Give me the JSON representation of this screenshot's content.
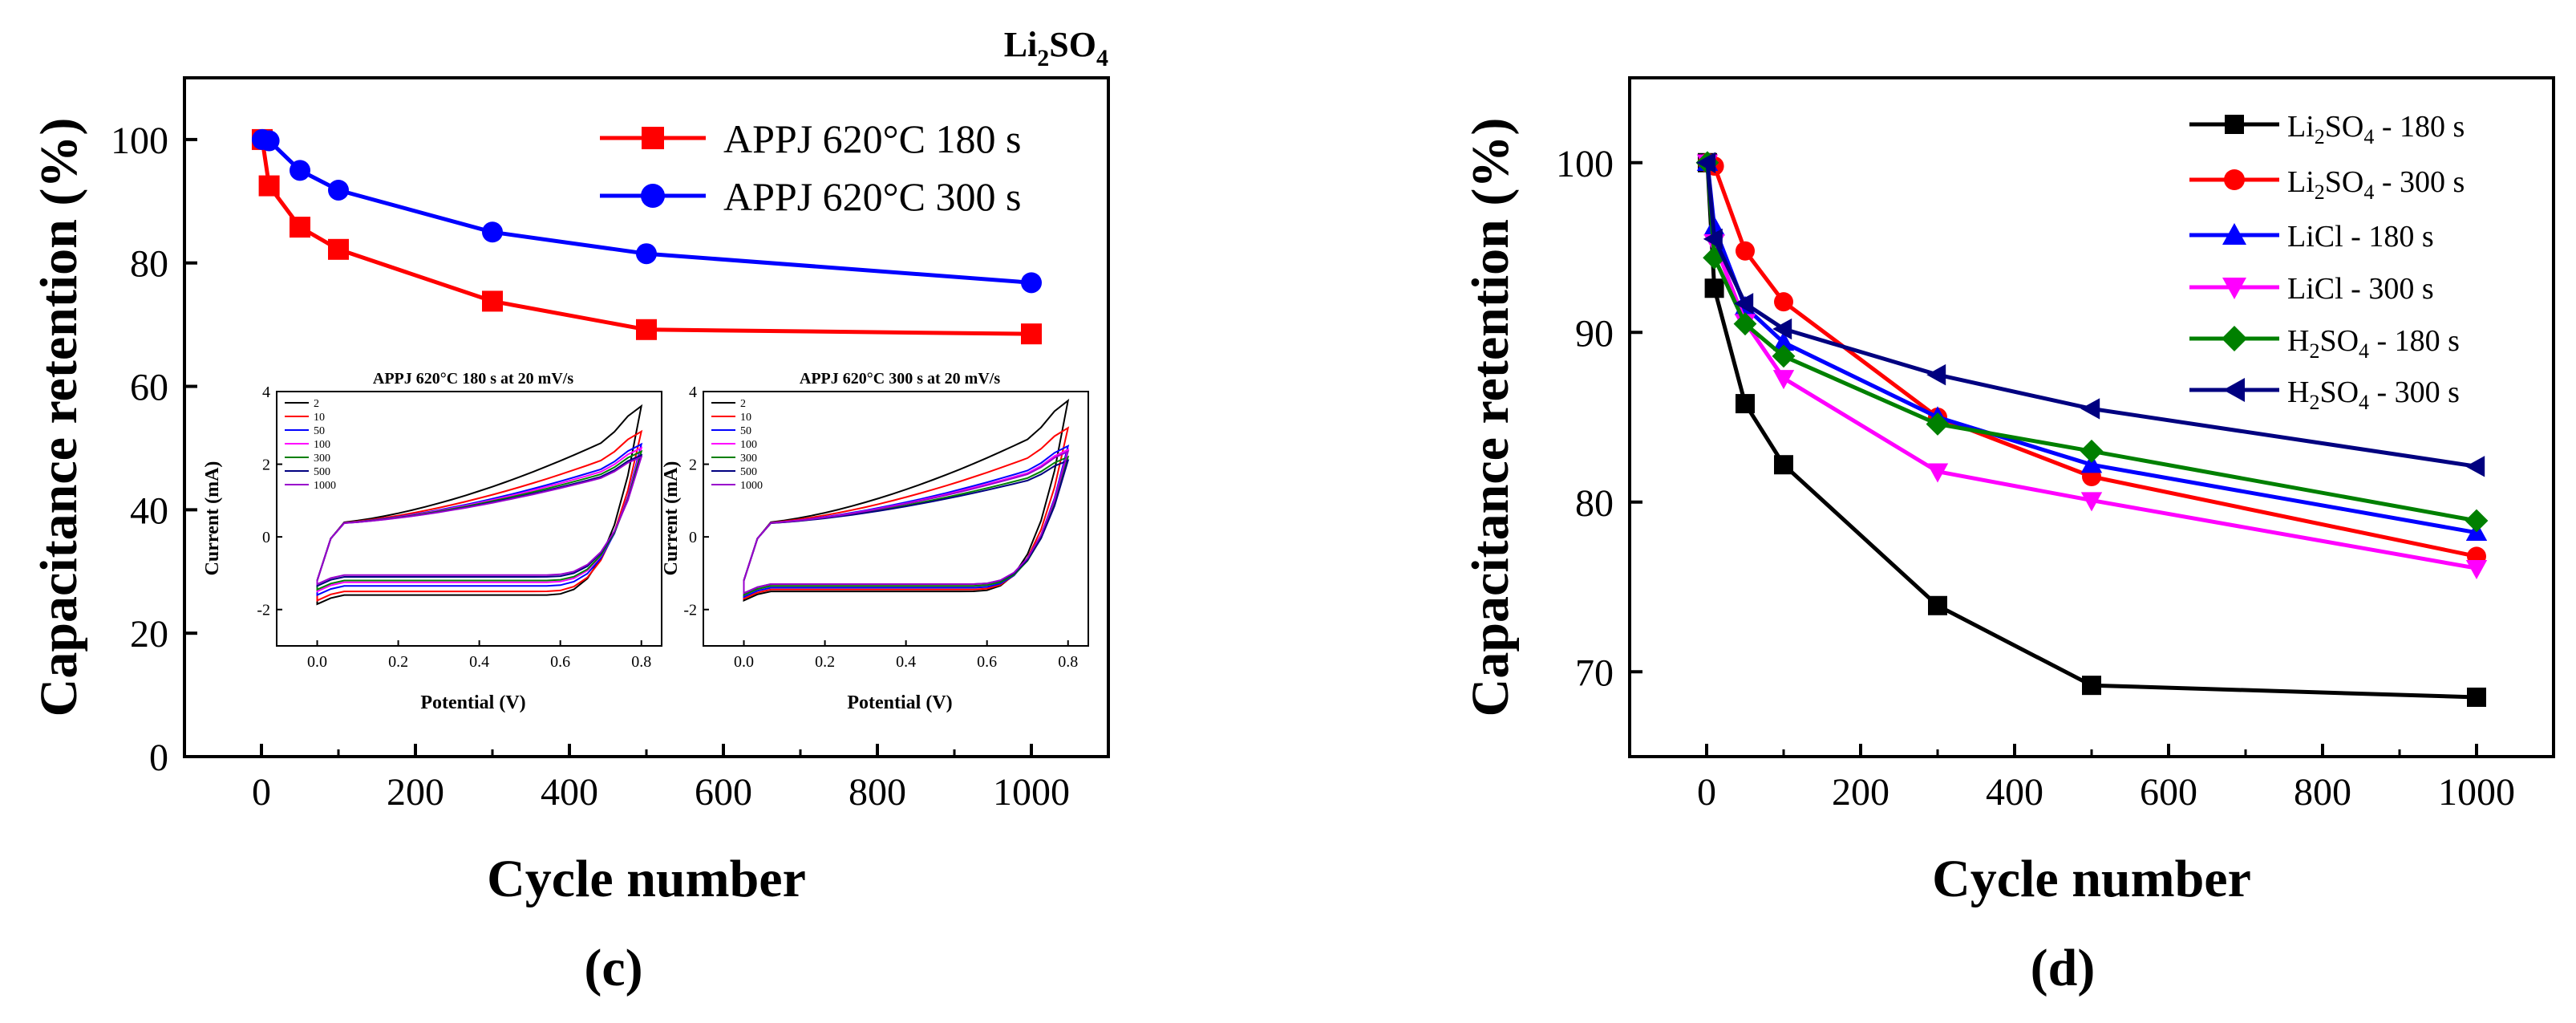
{
  "panel_c": {
    "title": "Li2SO4",
    "caption": "(c)",
    "xlabel": "Cycle number",
    "ylabel": "Capacitance retention (%)",
    "xticks": [
      "0",
      "200",
      "400",
      "600",
      "800",
      "1000"
    ],
    "yticks": [
      "0",
      "20",
      "40",
      "60",
      "80",
      "100"
    ],
    "xlim": [
      -100,
      1100
    ],
    "ylim": [
      0,
      110
    ]
  },
  "panel_d": {
    "caption": "(d)",
    "xlabel": "Cycle number",
    "ylabel": "Capacitance retention (%)",
    "xticks": [
      "0",
      "200",
      "400",
      "600",
      "800",
      "1000"
    ],
    "yticks": [
      "70",
      "80",
      "90",
      "100"
    ],
    "xlim": [
      -100,
      1100
    ],
    "ylim": [
      65,
      105
    ]
  },
  "inset1": {
    "title": "APPJ 620°C 180 s at 20 mV/s",
    "xlabel": "Potential (V)",
    "ylabel": "Current (mA)",
    "xticks": [
      "0.0",
      "0.2",
      "0.4",
      "0.6",
      "0.8"
    ],
    "yticks": [
      "-2",
      "0",
      "2",
      "4"
    ],
    "legend": [
      "2",
      "10",
      "50",
      "100",
      "300",
      "500",
      "1000"
    ]
  },
  "inset2": {
    "title": "APPJ 620°C 300 s at 20 mV/s",
    "xlabel": "Potential (V)",
    "ylabel": "Current (mA)",
    "xticks": [
      "0.0",
      "0.2",
      "0.4",
      "0.6",
      "0.8"
    ],
    "yticks": [
      "-2",
      "0",
      "2",
      "4"
    ],
    "legend": [
      "2",
      "10",
      "50",
      "100",
      "300",
      "500",
      "1000"
    ]
  },
  "colors": {
    "red": "#ff0000",
    "blue": "#0000ff",
    "black": "#000000",
    "magenta": "#ff00ff",
    "green": "#008000",
    "navy": "#000080",
    "violet": "#9900cc"
  },
  "chart_data": [
    {
      "type": "line",
      "panel": "(c)",
      "title": "Li2SO4",
      "xlabel": "Cycle number",
      "ylabel": "Capacitance retention (%)",
      "xlim": [
        -100,
        1100
      ],
      "ylim": [
        0,
        110
      ],
      "legend_position": "top-right",
      "series": [
        {
          "name": "APPJ 620°C 180 s",
          "color": "#ff0000",
          "marker": "square",
          "x": [
            1,
            10,
            50,
            100,
            300,
            500,
            1000
          ],
          "y": [
            100,
            92.5,
            85.8,
            82.2,
            73.8,
            69.2,
            68.5
          ]
        },
        {
          "name": "APPJ 620°C 300 s",
          "color": "#0000ff",
          "marker": "circle",
          "x": [
            1,
            10,
            50,
            100,
            300,
            500,
            1000
          ],
          "y": [
            100,
            99.8,
            95,
            91.8,
            85,
            81.5,
            76.8
          ]
        }
      ]
    },
    {
      "type": "line",
      "panel": "(d)",
      "xlabel": "Cycle number",
      "ylabel": "Capacitance retention (%)",
      "xlim": [
        -100,
        1100
      ],
      "ylim": [
        65,
        105
      ],
      "legend_position": "top-right",
      "series": [
        {
          "name": "Li2SO4 - 180 s",
          "color": "#000000",
          "marker": "square",
          "x": [
            1,
            10,
            50,
            100,
            300,
            500,
            1000
          ],
          "y": [
            100,
            92.6,
            85.8,
            82.2,
            73.9,
            69.2,
            68.5
          ]
        },
        {
          "name": "Li2SO4 - 300 s",
          "color": "#ff0000",
          "marker": "circle",
          "x": [
            1,
            10,
            50,
            100,
            300,
            500,
            1000
          ],
          "y": [
            100,
            99.8,
            94.8,
            91.8,
            85,
            81.5,
            76.8
          ]
        },
        {
          "name": "LiCl - 180 s",
          "color": "#0000ff",
          "marker": "triangle-up",
          "x": [
            1,
            10,
            50,
            100,
            300,
            500,
            1000
          ],
          "y": [
            100,
            96.2,
            91.5,
            89.4,
            85,
            82.2,
            78.2
          ]
        },
        {
          "name": "LiCl - 300 s",
          "color": "#ff00ff",
          "marker": "triangle-down",
          "x": [
            1,
            10,
            50,
            100,
            300,
            500,
            1000
          ],
          "y": [
            100,
            95.3,
            90.6,
            87.3,
            81.8,
            80.1,
            76.1
          ]
        },
        {
          "name": "H2SO4 - 180 s",
          "color": "#008000",
          "marker": "diamond",
          "x": [
            1,
            10,
            50,
            100,
            300,
            500,
            1000
          ],
          "y": [
            100,
            94.4,
            90.5,
            88.6,
            84.6,
            83,
            78.9
          ]
        },
        {
          "name": "H2SO4 - 300 s",
          "color": "#000080",
          "marker": "triangle-left",
          "x": [
            1,
            10,
            50,
            100,
            300,
            500,
            1000
          ],
          "y": [
            100,
            95.5,
            91.7,
            90.2,
            87.5,
            85.5,
            82.1
          ]
        }
      ]
    },
    {
      "type": "line",
      "panel": "inset (c) left",
      "title": "APPJ 620°C 180 s at 20 mV/s",
      "xlabel": "Potential (V)",
      "ylabel": "Current (mA)",
      "xlim": [
        -0.1,
        0.85
      ],
      "ylim": [
        -3,
        4
      ],
      "series": [
        {
          "name": "2",
          "color": "#000000",
          "top_end": 3.6,
          "bottom_mid": -1.6
        },
        {
          "name": "10",
          "color": "#ff0000",
          "top_end": 2.9,
          "bottom_mid": -1.5
        },
        {
          "name": "50",
          "color": "#0000ff",
          "top_end": 2.55,
          "bottom_mid": -1.35
        },
        {
          "name": "100",
          "color": "#ff00ff",
          "top_end": 2.45,
          "bottom_mid": -1.25
        },
        {
          "name": "300",
          "color": "#008000",
          "top_end": 2.35,
          "bottom_mid": -1.2
        },
        {
          "name": "500",
          "color": "#000080",
          "top_end": 2.25,
          "bottom_mid": -1.1
        },
        {
          "name": "1000",
          "color": "#9900cc",
          "top_end": 2.2,
          "bottom_mid": -1.05
        }
      ]
    },
    {
      "type": "line",
      "panel": "inset (c) right",
      "title": "APPJ 620°C 300 s at 20 mV/s",
      "xlabel": "Potential (V)",
      "ylabel": "Current (mA)",
      "xlim": [
        -0.1,
        0.85
      ],
      "ylim": [
        -3,
        4
      ],
      "series": [
        {
          "name": "2",
          "color": "#000000",
          "top_end": 3.75,
          "bottom_mid": -1.5
        },
        {
          "name": "10",
          "color": "#ff0000",
          "top_end": 3.0,
          "bottom_mid": -1.45
        },
        {
          "name": "50",
          "color": "#0000ff",
          "top_end": 2.5,
          "bottom_mid": -1.4
        },
        {
          "name": "100",
          "color": "#ff00ff",
          "top_end": 2.4,
          "bottom_mid": -1.35
        },
        {
          "name": "300",
          "color": "#008000",
          "top_end": 2.2,
          "bottom_mid": -1.35
        },
        {
          "name": "500",
          "color": "#000080",
          "top_end": 2.1,
          "bottom_mid": -1.3
        },
        {
          "name": "1000",
          "color": "#9900cc",
          "top_end": 2.35,
          "bottom_mid": -1.3
        }
      ]
    }
  ]
}
